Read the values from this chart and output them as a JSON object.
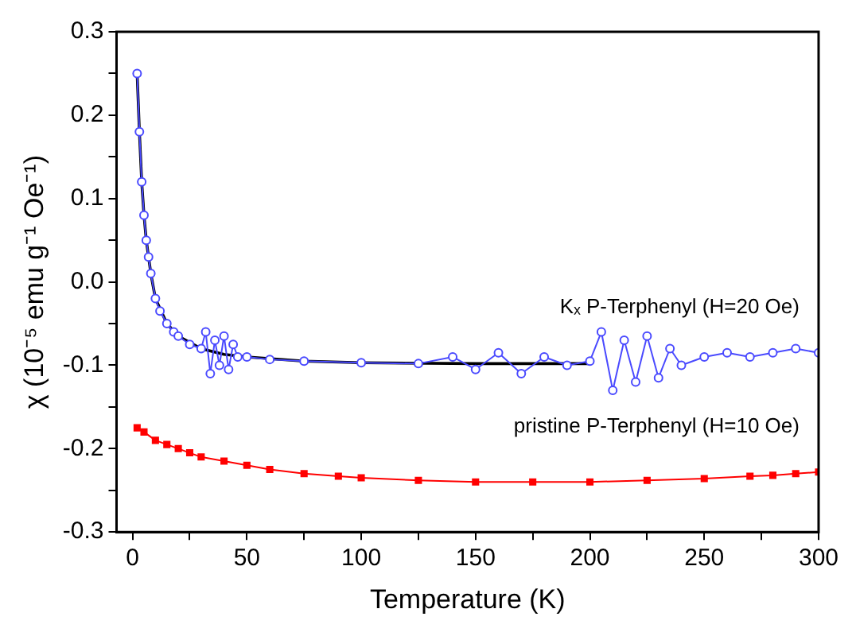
{
  "chart_data": {
    "type": "line",
    "xlabel": "Temperature (K)",
    "ylabel": "χ (10⁻⁵ emu g⁻¹ Oe⁻¹)",
    "xlim": [
      -7,
      300
    ],
    "ylim": [
      -0.3,
      0.3
    ],
    "xticks": [
      0,
      {
        "value": 25,
        "label": null
      },
      50,
      {
        "value": 75,
        "label": null
      },
      100,
      {
        "value": 125,
        "label": null
      },
      150,
      {
        "value": 175,
        "label": null
      },
      200,
      {
        "value": 225,
        "label": null
      },
      250,
      {
        "value": 275,
        "label": null
      },
      300
    ],
    "yticks": [
      {
        "value": -0.3,
        "label": "-0.3"
      },
      {
        "value": -0.25,
        "label": null
      },
      {
        "value": -0.2,
        "label": "-0.2"
      },
      {
        "value": -0.15,
        "label": null
      },
      {
        "value": -0.1,
        "label": "-0.1"
      },
      {
        "value": -0.05,
        "label": null
      },
      {
        "value": 0,
        "label": "0.0"
      },
      {
        "value": 0.05,
        "label": null
      },
      {
        "value": 0.1,
        "label": "0.1"
      },
      {
        "value": 0.15,
        "label": null
      },
      {
        "value": 0.2,
        "label": "0.2"
      },
      {
        "value": 0.25,
        "label": null
      },
      {
        "value": 0.3,
        "label": "0.3"
      }
    ],
    "grid": false,
    "legend": false,
    "series": [
      {
        "name": "Kₓ P-Terphenyl (H=20 Oe)",
        "color": "#4a4aff",
        "marker": "circle",
        "x": [
          2,
          3,
          4,
          5,
          6,
          7,
          8,
          10,
          12,
          15,
          18,
          20,
          25,
          30,
          32,
          34,
          36,
          38,
          40,
          42,
          44,
          46,
          50,
          60,
          75,
          100,
          125,
          140,
          150,
          160,
          170,
          180,
          190,
          200,
          205,
          210,
          215,
          220,
          225,
          230,
          235,
          240,
          250,
          260,
          270,
          280,
          290,
          300
        ],
        "values": [
          0.25,
          0.18,
          0.12,
          0.08,
          0.05,
          0.03,
          0.01,
          -0.02,
          -0.035,
          -0.05,
          -0.06,
          -0.065,
          -0.075,
          -0.08,
          -0.06,
          -0.11,
          -0.07,
          -0.1,
          -0.065,
          -0.105,
          -0.075,
          -0.09,
          -0.09,
          -0.093,
          -0.095,
          -0.097,
          -0.098,
          -0.09,
          -0.105,
          -0.085,
          -0.11,
          -0.09,
          -0.1,
          -0.095,
          -0.06,
          -0.13,
          -0.07,
          -0.12,
          -0.065,
          -0.115,
          -0.08,
          -0.1,
          -0.09,
          -0.085,
          -0.09,
          -0.085,
          -0.08,
          -0.085
        ]
      },
      {
        "color": "#000000",
        "marker": "none",
        "x": [
          2,
          3,
          4,
          5,
          6,
          8,
          10,
          15,
          20,
          30,
          40,
          50,
          75,
          100,
          150,
          200
        ],
        "values": [
          0.25,
          0.18,
          0.12,
          0.08,
          0.05,
          0.01,
          -0.02,
          -0.05,
          -0.065,
          -0.08,
          -0.087,
          -0.09,
          -0.095,
          -0.097,
          -0.098,
          -0.098
        ]
      },
      {
        "name": "pristine P-Terphenyl (H=10 Oe)",
        "color": "#ff0000",
        "marker": "square",
        "x": [
          2,
          5,
          10,
          15,
          20,
          25,
          30,
          40,
          50,
          60,
          75,
          90,
          100,
          125,
          150,
          175,
          200,
          225,
          250,
          270,
          280,
          290,
          300
        ],
        "values": [
          -0.175,
          -0.18,
          -0.19,
          -0.195,
          -0.2,
          -0.205,
          -0.21,
          -0.215,
          -0.22,
          -0.225,
          -0.23,
          -0.233,
          -0.235,
          -0.238,
          -0.24,
          -0.24,
          -0.24,
          -0.238,
          -0.236,
          -0.233,
          -0.232,
          -0.23,
          -0.228
        ]
      }
    ]
  }
}
